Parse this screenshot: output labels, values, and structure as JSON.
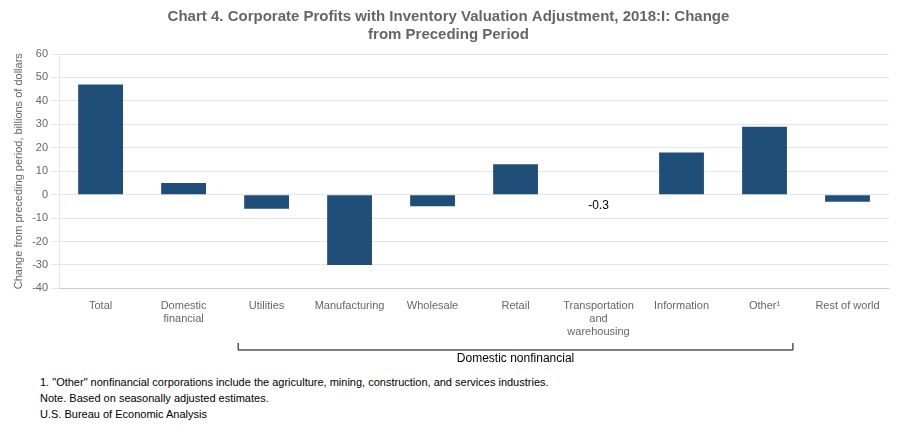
{
  "chart_data": {
    "type": "bar",
    "title": "Chart 4. Corporate Profits with Inventory Valuation Adjustment, 2018:I: Change\nfrom Preceding Period",
    "ylabel": "Change from preceding period, billions of dollars",
    "categories": [
      "Total",
      "Domestic\nfinancial",
      "Utilities",
      "Manufacturing",
      "Wholesale",
      "Retail",
      "Transportation\nand\nwarehousing",
      "Information",
      "Other¹",
      "Rest of world"
    ],
    "values": [
      47,
      5,
      -6,
      -30,
      -5,
      13,
      -0.3,
      18,
      29,
      -3
    ],
    "color": "#1F4E79",
    "ylim": [
      -40,
      60
    ],
    "yticks": [
      -40,
      -30,
      -20,
      -10,
      0,
      10,
      20,
      30,
      40,
      50,
      60
    ],
    "grid": true,
    "annotations": [
      {
        "text": "-0.3",
        "category": "Transportation\nand\nwarehousing"
      },
      {
        "text": "Domestic nonfinancial",
        "from": "Utilities",
        "to": "Other¹"
      }
    ],
    "footnotes": [
      "1. \"Other\" nonfinancial corporations include the agriculture, mining, construction, and services industries.",
      "Note. Based on seasonally adjusted estimates.",
      "U.S. Bureau of Economic Analysis"
    ]
  }
}
